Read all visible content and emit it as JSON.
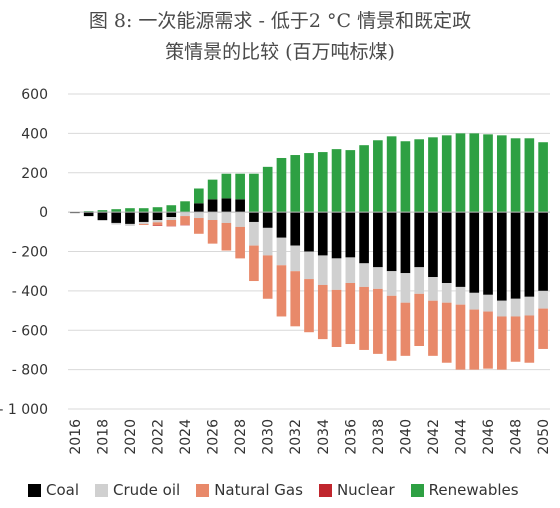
{
  "title_line1": "图 8: 一次能源需求 - 低于2 °C 情景和既定政",
  "title_line2": "策情景的比较 (百万吨标煤)",
  "colors": {
    "Coal": "#000000",
    "Crude oil": "#d0d0d0",
    "Natural Gas": "#e8896a",
    "Nuclear": "#c0262d",
    "Renewables": "#2ea043",
    "grid": "#d9d9d9"
  },
  "chart_data": {
    "type": "bar",
    "stacked": true,
    "ylim": [
      -1000,
      600
    ],
    "yticks": [
      600,
      400,
      200,
      0,
      -200,
      -400,
      -600,
      -800,
      -1000
    ],
    "ytick_labels": [
      "600",
      "400",
      "200",
      "0",
      "- 200",
      "- 400",
      "- 600",
      "- 800",
      "- 1 000"
    ],
    "xtick_labels": [
      "2016",
      "2018",
      "2020",
      "2022",
      "2024",
      "2026",
      "2028",
      "2030",
      "2032",
      "2034",
      "2036",
      "2038",
      "2040",
      "2042",
      "2044",
      "2046",
      "2048",
      "2050"
    ],
    "categories": [
      "2016",
      "2017",
      "2018",
      "2019",
      "2020",
      "2021",
      "2022",
      "2023",
      "2024",
      "2025",
      "2026",
      "2027",
      "2028",
      "2029",
      "2030",
      "2031",
      "2032",
      "2033",
      "2034",
      "2035",
      "2036",
      "2037",
      "2038",
      "2039",
      "2040",
      "2041",
      "2042",
      "2043",
      "2044",
      "2045",
      "2046",
      "2047",
      "2048",
      "2049",
      "2050"
    ],
    "grid": true,
    "legend_position": "bottom",
    "series": [
      {
        "name": "Coal",
        "values": [
          -5,
          -20,
          -40,
          -55,
          -60,
          -50,
          -40,
          -25,
          0,
          45,
          65,
          70,
          65,
          -50,
          -80,
          -130,
          -170,
          -200,
          -220,
          -235,
          -230,
          -260,
          -280,
          -300,
          -310,
          -280,
          -330,
          -360,
          -380,
          -410,
          -420,
          -450,
          -440,
          -430,
          -400
        ]
      },
      {
        "name": "Crude oil",
        "values": [
          -2,
          -3,
          -5,
          -8,
          -10,
          -10,
          -12,
          -15,
          -20,
          -30,
          -40,
          -55,
          -75,
          -120,
          -140,
          -140,
          -130,
          -140,
          -150,
          -160,
          -130,
          -120,
          -110,
          -125,
          -150,
          -135,
          -120,
          -100,
          -90,
          -85,
          -85,
          -80,
          -90,
          -95,
          -90
        ]
      },
      {
        "name": "Natural Gas",
        "values": [
          0,
          0,
          0,
          0,
          0,
          -5,
          -15,
          -30,
          -45,
          -80,
          -120,
          -140,
          -160,
          -180,
          -220,
          -260,
          -280,
          -270,
          -275,
          -290,
          -310,
          -320,
          -330,
          -330,
          -270,
          -265,
          -280,
          -305,
          -330,
          -305,
          -290,
          -270,
          -230,
          -240,
          -205
        ]
      },
      {
        "name": "Nuclear",
        "values": [
          0,
          0,
          0,
          0,
          0,
          0,
          -3,
          -2,
          -2,
          0,
          0,
          0,
          0,
          0,
          0,
          0,
          0,
          0,
          0,
          0,
          0,
          0,
          0,
          0,
          0,
          0,
          0,
          0,
          0,
          0,
          0,
          0,
          0,
          0,
          0
        ]
      },
      {
        "name": "Renewables",
        "values": [
          0,
          5,
          10,
          15,
          20,
          20,
          25,
          35,
          55,
          75,
          100,
          125,
          130,
          195,
          230,
          275,
          290,
          300,
          305,
          320,
          315,
          340,
          365,
          385,
          360,
          370,
          380,
          390,
          400,
          400,
          395,
          390,
          375,
          375,
          355
        ]
      }
    ]
  }
}
